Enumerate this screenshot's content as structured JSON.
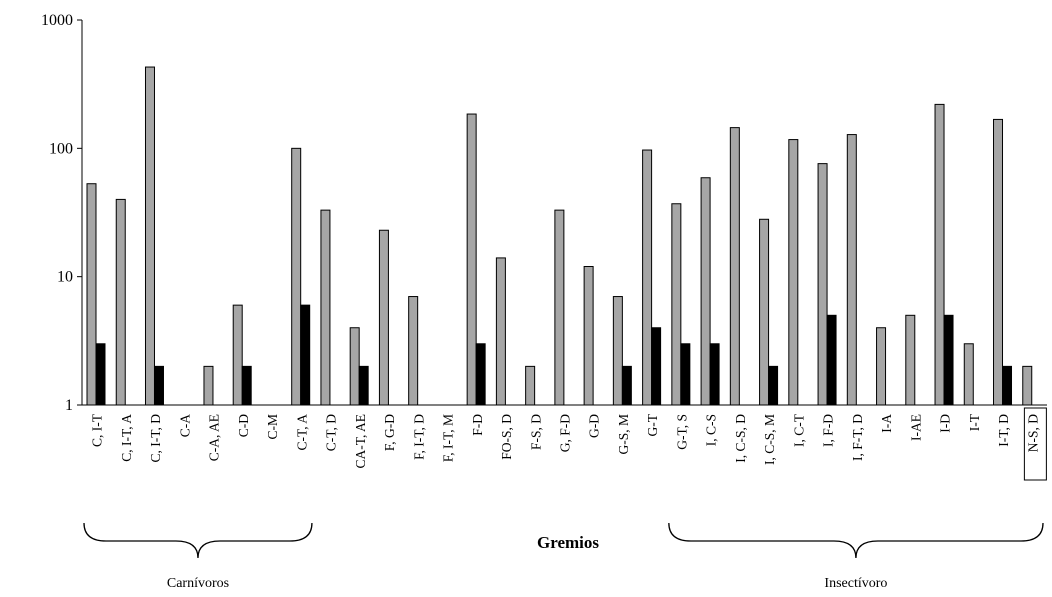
{
  "chart_data": {
    "type": "bar",
    "title": "",
    "xlabel": "Gremios",
    "ylabel": "",
    "yscale": "log",
    "ylim": [
      1,
      1000
    ],
    "yticks": [
      "1",
      "10",
      "100",
      "1000"
    ],
    "grid": false,
    "categories": [
      "C, I-T",
      "C, I-T, A",
      "C, I-T, D",
      "C-A",
      "C-A, AE",
      "C-D",
      "C-M",
      "C-T, A",
      "C-T, D",
      "CA-T, AE",
      "F, G-D",
      "F, I-T, D",
      "F, I-T, M",
      "F-D",
      "FO-S, D",
      "F-S, D",
      "G, F-D",
      "G-D",
      "G-S, M",
      "G-T",
      "G-T, S",
      "I, C-S",
      "I, C-S, D",
      "I, C-S, M",
      "I, C-T",
      "I, F-D",
      "I, F-T, D",
      "I-A",
      "I-AE",
      "I-D",
      "I-T",
      "I-T, D",
      "N-S, D"
    ],
    "series": [
      {
        "color": "#a6a6a6",
        "values": [
          53,
          40,
          430,
          null,
          2,
          6,
          null,
          100,
          33,
          4,
          23,
          7,
          null,
          185,
          14,
          2,
          33,
          12,
          7,
          97,
          37,
          59,
          145,
          28,
          117,
          76,
          128,
          4,
          5,
          220,
          3,
          168,
          2
        ]
      },
      {
        "color": "#000000",
        "values": [
          3,
          null,
          2,
          null,
          null,
          2,
          null,
          6,
          null,
          2,
          null,
          null,
          null,
          3,
          null,
          null,
          null,
          null,
          2,
          4,
          3,
          3,
          null,
          2,
          null,
          5,
          null,
          null,
          null,
          5,
          null,
          2,
          null
        ]
      }
    ],
    "groups": [
      {
        "label": "Carnívoros",
        "from": 0,
        "to": 7
      },
      {
        "label": "Insectívoro",
        "from": 20,
        "to": 32
      }
    ],
    "boxed_category": "N-S, D"
  }
}
